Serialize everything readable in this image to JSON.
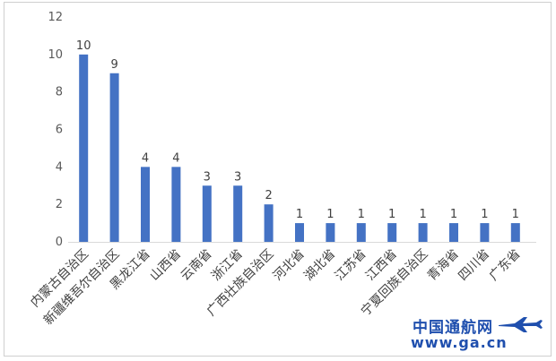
{
  "chart_data": {
    "type": "bar",
    "categories": [
      "内蒙古自治区",
      "新疆维吾尔自治区",
      "黑龙江省",
      "山西省",
      "云南省",
      "浙江省",
      "广西壮族自治区",
      "河北省",
      "湖北省",
      "江苏省",
      "江西省",
      "宁夏回族自治区",
      "青海省",
      "四川省",
      "广东省"
    ],
    "values": [
      10,
      9,
      4,
      4,
      3,
      3,
      2,
      1,
      1,
      1,
      1,
      1,
      1,
      1,
      1
    ],
    "data_labels": [
      "10",
      "9",
      "4",
      "4",
      "3",
      "3",
      "2",
      "1",
      "1",
      "1",
      "1",
      "1",
      "1",
      "1",
      "1"
    ],
    "yticks": [
      "0",
      "2",
      "4",
      "6",
      "8",
      "10",
      "12"
    ],
    "ylim": [
      0,
      12
    ],
    "grid": false,
    "bar_color": "#4472c4"
  },
  "watermark": {
    "text_cn": "中国通航网",
    "url": "www.ga.cn",
    "color": "#1f4fae"
  }
}
